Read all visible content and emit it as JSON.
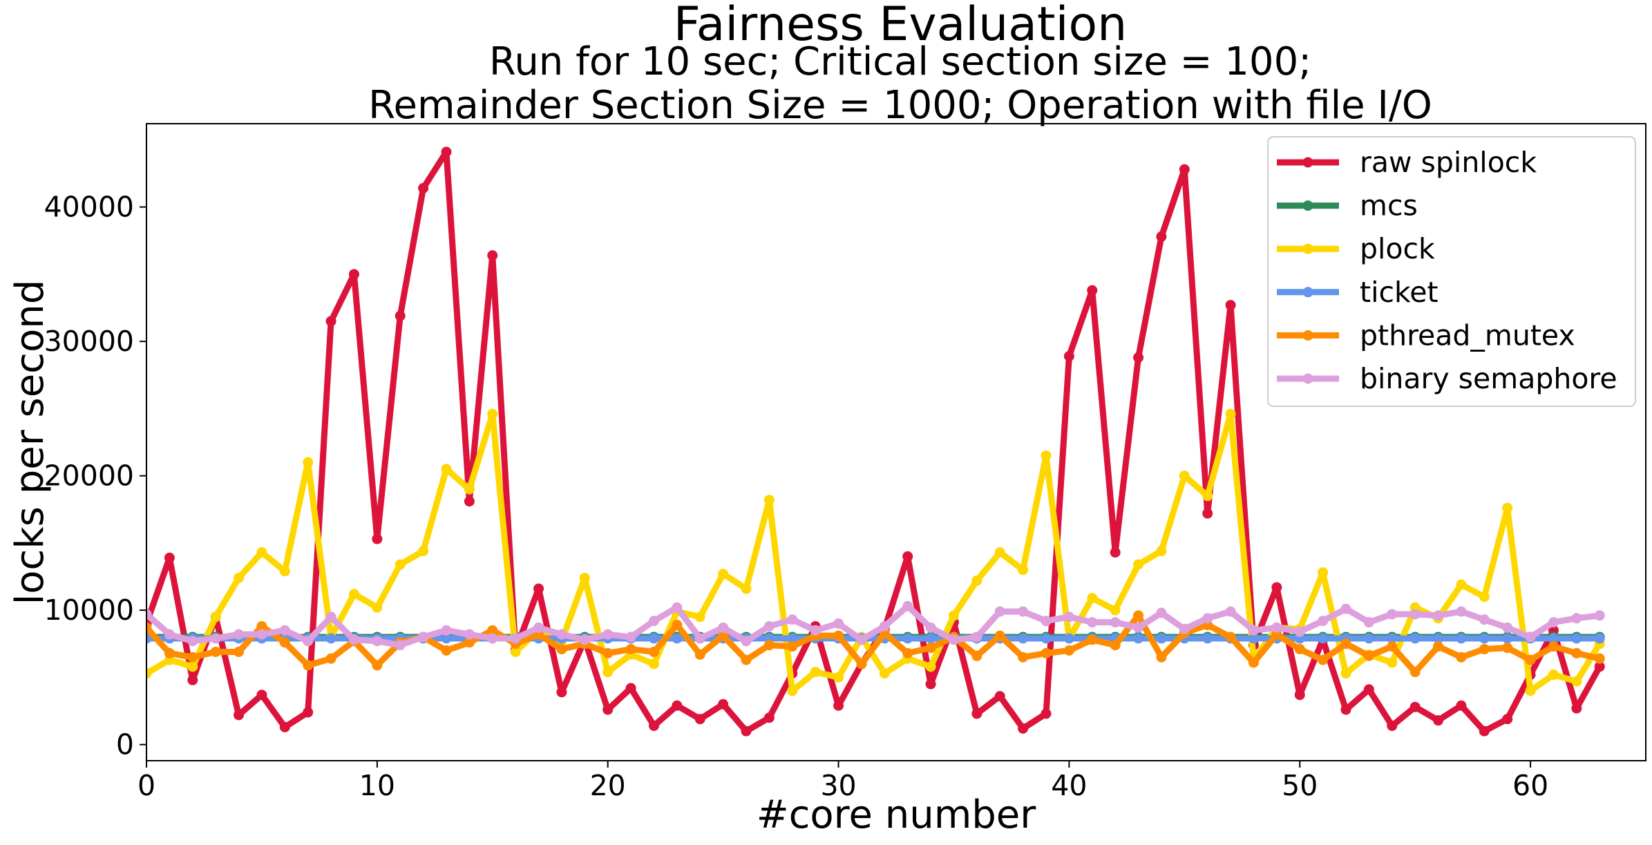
{
  "chart_data": {
    "type": "line",
    "title": "Fairness Evaluation",
    "subtitle_lines": [
      "Run for 10 sec; Critical section size = 100;",
      "Remainder Section Size = 1000; Operation with file I/O"
    ],
    "xlabel": "#core number",
    "ylabel": "locks per second",
    "xlim": [
      0,
      65
    ],
    "ylim": [
      -1200,
      46200
    ],
    "xticks": [
      0,
      10,
      20,
      30,
      40,
      50,
      60
    ],
    "yticks": [
      0,
      10000,
      20000,
      30000,
      40000
    ],
    "grid": false,
    "legend_position": "top-right",
    "series": [
      {
        "name": "raw spinlock",
        "color": "#dc143c",
        "values": [
          9000,
          13900,
          4800,
          9500,
          2200,
          3700,
          1300,
          2400,
          31500,
          35000,
          15300,
          31900,
          41400,
          44100,
          18100,
          36400,
          7000,
          11600,
          3900,
          7800,
          2600,
          4200,
          1400,
          2900,
          1900,
          3000,
          1000,
          2000,
          5300,
          8800,
          2900,
          6000,
          8600,
          14000,
          4500,
          9100,
          2300,
          3600,
          1200,
          2300,
          28900,
          33800,
          14300,
          28800,
          37800,
          42800,
          17200,
          32700,
          7400,
          11700,
          3700,
          7800,
          2600,
          4100,
          1400,
          2800,
          1800,
          2900,
          1000,
          1900,
          5200,
          8500,
          2700,
          5800
        ]
      },
      {
        "name": "mcs",
        "color": "#2e8b57",
        "values": [
          8000,
          8000,
          8000,
          8000,
          8000,
          8000,
          8000,
          8000,
          8000,
          8000,
          8000,
          8000,
          8000,
          8000,
          8000,
          8000,
          8000,
          8000,
          8000,
          8000,
          8000,
          8000,
          8000,
          8000,
          8000,
          8000,
          8000,
          8000,
          8000,
          8000,
          8000,
          8000,
          8000,
          8000,
          8000,
          8000,
          8000,
          8000,
          8000,
          8000,
          8000,
          8000,
          8000,
          8000,
          8000,
          8000,
          8000,
          8000,
          8000,
          8000,
          8000,
          8000,
          8000,
          8000,
          8000,
          8000,
          8000,
          8000,
          8000,
          8000,
          8000,
          8000,
          8000,
          8000
        ]
      },
      {
        "name": "plock",
        "color": "#ffd700",
        "values": [
          5300,
          6300,
          5800,
          9500,
          12400,
          14300,
          12900,
          21000,
          8000,
          11200,
          10200,
          13400,
          14400,
          20500,
          19000,
          24600,
          6900,
          8500,
          7700,
          12400,
          5400,
          6700,
          6000,
          9900,
          9500,
          12700,
          11600,
          18200,
          4000,
          5400,
          5000,
          8000,
          5300,
          6400,
          5800,
          9600,
          12200,
          14300,
          13000,
          21500,
          7900,
          10900,
          10000,
          13400,
          14400,
          20000,
          18500,
          24600,
          6300,
          8700,
          8600,
          12800,
          5300,
          6700,
          6100,
          10200,
          9400,
          11900,
          11000,
          17600,
          4000,
          5200,
          4700,
          7500
        ]
      },
      {
        "name": "ticket",
        "color": "#6495ed",
        "values": [
          7900,
          7900,
          7900,
          7900,
          7900,
          7900,
          7900,
          7900,
          7900,
          7900,
          7900,
          7900,
          7900,
          7900,
          7900,
          7900,
          7900,
          7900,
          7900,
          7900,
          7900,
          7900,
          7900,
          7900,
          7900,
          7900,
          7900,
          7900,
          7900,
          7900,
          7900,
          7900,
          7900,
          7900,
          7900,
          7900,
          7900,
          7900,
          7900,
          7900,
          7900,
          7900,
          7900,
          7900,
          7900,
          7900,
          7900,
          7900,
          7900,
          7900,
          7900,
          7900,
          7900,
          7900,
          7900,
          7900,
          7900,
          7900,
          7900,
          7900,
          7900,
          7900,
          7900,
          7900
        ]
      },
      {
        "name": "pthread_mutex",
        "color": "#ff8c00",
        "values": [
          8700,
          6800,
          6500,
          6900,
          6900,
          8800,
          7600,
          5900,
          6400,
          7700,
          5900,
          7600,
          8000,
          7000,
          7600,
          8500,
          7500,
          8200,
          7100,
          7500,
          6800,
          7100,
          6900,
          8900,
          6700,
          8100,
          6300,
          7400,
          7300,
          8100,
          8100,
          6000,
          8300,
          6800,
          7200,
          8000,
          6600,
          8100,
          6500,
          6800,
          7000,
          7800,
          7400,
          9600,
          6500,
          8300,
          8900,
          8000,
          6100,
          8200,
          7100,
          6300,
          7500,
          6600,
          7300,
          5400,
          7300,
          6500,
          7100,
          7200,
          6300,
          7300,
          6800,
          6400
        ]
      },
      {
        "name": "binary semaphore",
        "color": "#dda0dd",
        "values": [
          9700,
          8200,
          7700,
          7900,
          8200,
          8200,
          8500,
          7700,
          9500,
          7800,
          7700,
          7400,
          8000,
          8500,
          8200,
          7900,
          7900,
          8700,
          8200,
          7800,
          8200,
          8000,
          9200,
          10200,
          7900,
          8700,
          7700,
          8800,
          9300,
          8500,
          9000,
          7800,
          8800,
          10300,
          8700,
          7800,
          8000,
          9900,
          9900,
          9200,
          9500,
          9100,
          9100,
          8700,
          9800,
          8600,
          9400,
          9900,
          8500,
          8700,
          8400,
          9200,
          10100,
          9100,
          9700,
          9700,
          9600,
          9900,
          9300,
          8700,
          8000,
          9100,
          9400,
          9600
        ]
      }
    ]
  }
}
